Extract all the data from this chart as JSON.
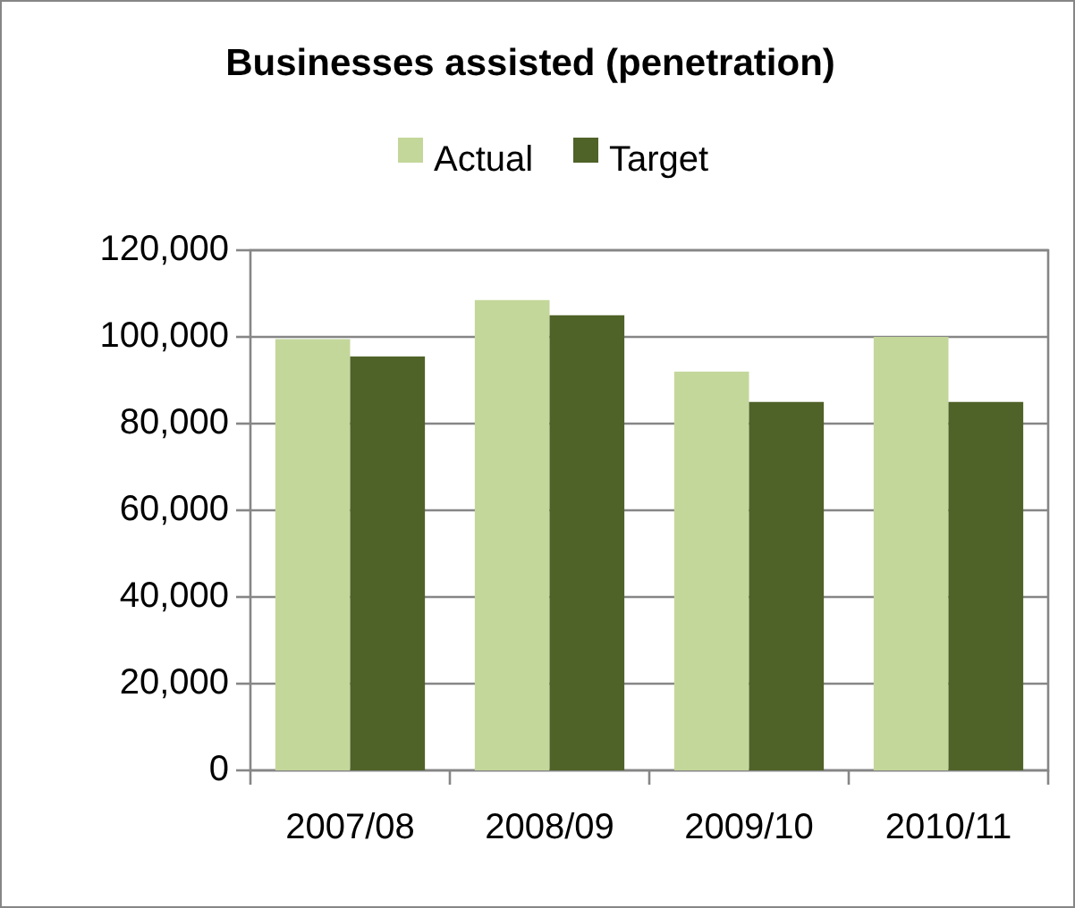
{
  "chart_data": {
    "type": "bar",
    "title": "Businesses assisted (penetration)",
    "categories": [
      "2007/08",
      "2008/09",
      "2009/10",
      "2010/11"
    ],
    "series": [
      {
        "name": "Actual",
        "color": "#c4d79b",
        "values": [
          99500,
          108500,
          92000,
          100000
        ]
      },
      {
        "name": "Target",
        "color": "#4f6228",
        "values": [
          95500,
          105000,
          85000,
          85000
        ]
      }
    ],
    "ylim": [
      0,
      120000
    ],
    "yticks": [
      {
        "value": 0,
        "label": "0"
      },
      {
        "value": 20000,
        "label": "20,000"
      },
      {
        "value": 40000,
        "label": "40,000"
      },
      {
        "value": 60000,
        "label": "60,000"
      },
      {
        "value": 80000,
        "label": "80,000"
      },
      {
        "value": 100000,
        "label": "100,000"
      },
      {
        "value": 120000,
        "label": "120,000"
      }
    ],
    "grid": "y",
    "legend": "top"
  }
}
